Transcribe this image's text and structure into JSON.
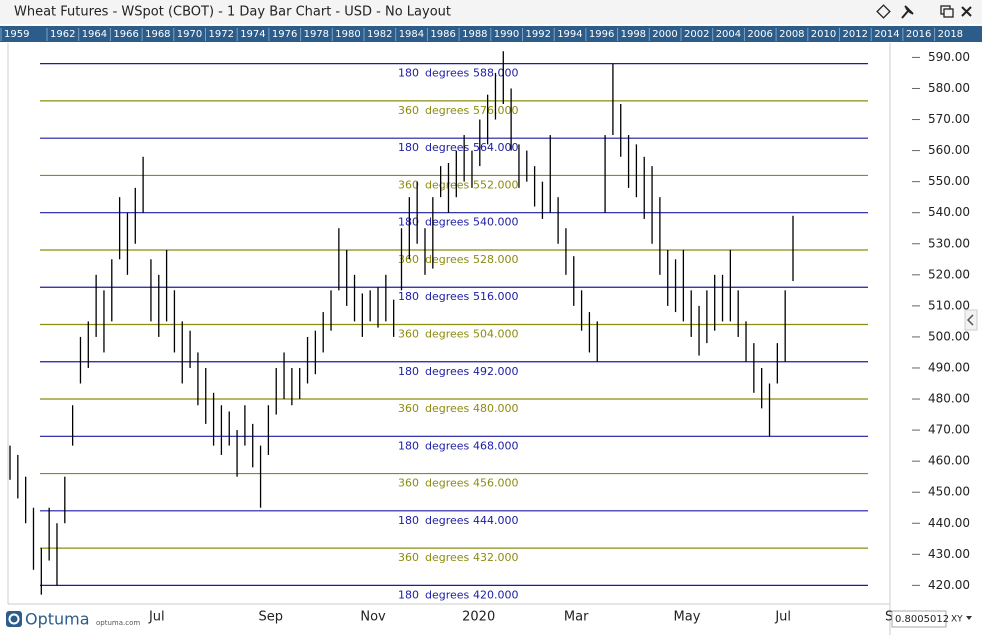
{
  "window": {
    "title": "Wheat Futures - WSpot (CBOT) - 1 Day Bar Chart - USD - No Layout"
  },
  "timeline": {
    "years": [
      1959,
      1962,
      1964,
      1966,
      1968,
      1970,
      1972,
      1974,
      1976,
      1978,
      1980,
      1982,
      1984,
      1986,
      1988,
      1990,
      1992,
      1994,
      1996,
      1998,
      2000,
      2002,
      2004,
      2006,
      2008,
      2010,
      2012,
      2014,
      2016,
      2018
    ]
  },
  "chart_data": {
    "type": "ohlc",
    "categories": [
      null,
      null,
      null,
      null,
      null,
      null,
      null,
      null,
      null,
      null,
      null,
      null,
      null,
      null,
      null,
      null,
      null,
      null,
      "Jul",
      null,
      null,
      null,
      null,
      null,
      null,
      null,
      null,
      null,
      null,
      null,
      null,
      null,
      "Sep",
      null,
      null,
      null,
      null,
      null,
      null,
      null,
      null,
      null,
      null,
      null,
      null,
      "Nov",
      null,
      null,
      null,
      null,
      null,
      null,
      null,
      null,
      null,
      null,
      null,
      null,
      "2020",
      null,
      null,
      null,
      null,
      null,
      null,
      null,
      null,
      null,
      null,
      null,
      null,
      "Mar",
      null,
      null,
      null,
      null,
      null,
      null,
      null,
      null,
      null,
      null,
      null,
      null,
      null,
      "May",
      null,
      null,
      null,
      null,
      null,
      null,
      null,
      null,
      null,
      null,
      null,
      null,
      "Jul",
      null,
      null,
      null,
      null,
      null,
      null,
      null,
      null,
      null,
      null,
      null,
      null,
      null,
      "S"
    ],
    "series": [
      {
        "color": "#000000",
        "high": [
          465,
          462,
          455,
          445,
          432,
          445,
          440,
          455,
          478,
          500,
          505,
          520,
          515,
          525,
          545,
          540,
          548,
          558,
          525,
          520,
          528,
          515,
          505,
          502,
          495,
          490,
          482,
          478,
          476,
          470,
          478,
          472,
          465,
          478,
          490,
          495,
          490,
          490,
          500,
          502,
          508,
          515,
          535,
          528,
          520,
          514,
          515,
          516,
          520,
          512,
          535,
          545,
          550,
          535,
          545,
          555,
          556,
          560,
          565,
          560,
          570,
          578,
          585,
          592,
          580,
          562,
          560,
          555,
          550,
          565,
          545,
          535,
          526,
          515,
          508,
          505,
          565,
          588,
          575,
          565,
          562,
          558,
          555,
          545,
          528,
          525,
          528,
          515,
          510,
          515,
          520,
          520,
          528,
          515,
          505,
          498,
          490,
          485,
          498,
          515,
          539,
          null,
          null,
          null,
          null,
          null,
          null,
          null,
          null,
          null,
          null,
          null,
          null
        ],
        "low": [
          454,
          448,
          440,
          425,
          417,
          428,
          420,
          440,
          465,
          485,
          490,
          500,
          495,
          505,
          525,
          520,
          530,
          540,
          505,
          500,
          505,
          495,
          485,
          490,
          478,
          472,
          465,
          462,
          465,
          455,
          465,
          458,
          445,
          462,
          475,
          480,
          478,
          480,
          485,
          488,
          495,
          502,
          515,
          510,
          505,
          500,
          505,
          503,
          505,
          500,
          515,
          525,
          530,
          520,
          522,
          545,
          540,
          545,
          550,
          548,
          555,
          562,
          570,
          575,
          560,
          548,
          550,
          542,
          538,
          540,
          530,
          520,
          510,
          502,
          495,
          492,
          540,
          565,
          558,
          548,
          545,
          538,
          530,
          520,
          510,
          508,
          505,
          500,
          494,
          498,
          502,
          505,
          505,
          500,
          492,
          482,
          477,
          468,
          485,
          492,
          518,
          null,
          null,
          null,
          null,
          null,
          null,
          null,
          null,
          null,
          null,
          null,
          null
        ]
      }
    ],
    "ylim": [
      414,
      594
    ],
    "yticks": [
      {
        "value": 420,
        "label": "420.00"
      },
      {
        "value": 430,
        "label": "430.00"
      },
      {
        "value": 440,
        "label": "440.00"
      },
      {
        "value": 450,
        "label": "450.00"
      },
      {
        "value": 460,
        "label": "460.00"
      },
      {
        "value": 470,
        "label": "470.00"
      },
      {
        "value": 480,
        "label": "480.00"
      },
      {
        "value": 490,
        "label": "490.00"
      },
      {
        "value": 500,
        "label": "500.00"
      },
      {
        "value": 510,
        "label": "510.00"
      },
      {
        "value": 520,
        "label": "520.00"
      },
      {
        "value": 530,
        "label": "530.00"
      },
      {
        "value": 540,
        "label": "540.00"
      },
      {
        "value": 550,
        "label": "550.00"
      },
      {
        "value": 560,
        "label": "560.00"
      },
      {
        "value": 570,
        "label": "570.00"
      },
      {
        "value": 580,
        "label": "580.00"
      },
      {
        "value": 590,
        "label": "590.00"
      }
    ],
    "levels": [
      {
        "angle": 180,
        "word": "degrees",
        "value": 588,
        "label": "588.000",
        "color": "#1c1ca6"
      },
      {
        "angle": 360,
        "word": "degrees",
        "value": 576,
        "label": "576.000",
        "color": "#8c8c10"
      },
      {
        "angle": 180,
        "word": "degrees",
        "value": 564,
        "label": "564.000",
        "color": "#1c1ca6"
      },
      {
        "angle": 360,
        "word": "degrees",
        "value": 552,
        "label": "552.000",
        "color": "#8c8c10"
      },
      {
        "angle": 180,
        "word": "degrees",
        "value": 540,
        "label": "540.000",
        "color": "#1c1ca6"
      },
      {
        "angle": 360,
        "word": "degrees",
        "value": 528,
        "label": "528.000",
        "color": "#8c8c10"
      },
      {
        "angle": 180,
        "word": "degrees",
        "value": 516,
        "label": "516.000",
        "color": "#1c1ca6"
      },
      {
        "angle": 360,
        "word": "degrees",
        "value": 504,
        "label": "504.000",
        "color": "#8c8c10"
      },
      {
        "angle": 180,
        "word": "degrees",
        "value": 492,
        "label": "492.000",
        "color": "#1c1ca6"
      },
      {
        "angle": 360,
        "word": "degrees",
        "value": 480,
        "label": "480.000",
        "color": "#8c8c10"
      },
      {
        "angle": 180,
        "word": "degrees",
        "value": 468,
        "label": "468.000",
        "color": "#1c1ca6"
      },
      {
        "angle": 360,
        "word": "degrees",
        "value": 456,
        "label": "456.000",
        "color": "#8c8c10"
      },
      {
        "angle": 180,
        "word": "degrees",
        "value": 444,
        "label": "444.000",
        "color": "#1c1ca6"
      },
      {
        "angle": 360,
        "word": "degrees",
        "value": 432,
        "label": "432.000",
        "color": "#8c8c10"
      },
      {
        "angle": 180,
        "word": "degrees",
        "value": 420,
        "label": "420.000",
        "color": "#1c1ca6"
      }
    ]
  },
  "footer": {
    "brand": "Optuma",
    "site": "optuma.com",
    "readout": "0.8005012",
    "mode": "XY"
  }
}
